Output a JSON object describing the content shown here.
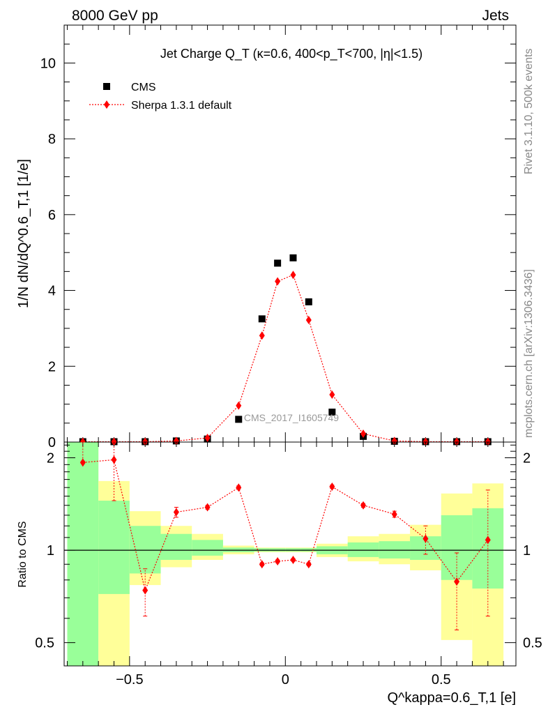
{
  "header": {
    "left": "8000 GeV pp",
    "right": "Jets"
  },
  "side_text": {
    "top": "Rivet 3.1.10,  500k events",
    "bottom": "mcplots.cern.ch [arXiv:1306.3436]"
  },
  "colors": {
    "data": "#000000",
    "mc": "#ff0000",
    "band_inner": "#99ff99",
    "band_outer": "#ffff99"
  },
  "chart_data": [
    {
      "type": "scatter",
      "title": "Jet Charge Q_T (κ=0.6, 400<p_T<700, |η|<1.5)",
      "ylabel": "1/N dN/dQ^0.6_T,1 [1/e]",
      "watermark": "CMS_2017_I1605749",
      "xlim": [
        -0.71,
        0.74
      ],
      "ylim": [
        0,
        11
      ],
      "yticks": [
        0,
        2,
        4,
        6,
        8,
        10
      ],
      "legend": [
        "CMS",
        "Sherpa 1.3.1 default"
      ],
      "legend_position": "top-left",
      "series": [
        {
          "name": "CMS",
          "marker": "square",
          "x": [
            -0.65,
            -0.55,
            -0.45,
            -0.35,
            -0.25,
            -0.15,
            -0.075,
            -0.025,
            0.025,
            0.075,
            0.15,
            0.25,
            0.35,
            0.45,
            0.55,
            0.65
          ],
          "y": [
            0.01,
            0.01,
            0.01,
            0.03,
            0.08,
            0.6,
            3.25,
            4.72,
            4.86,
            3.7,
            0.79,
            0.15,
            0.02,
            0.01,
            0.01,
            0.01
          ]
        },
        {
          "name": "Sherpa 1.3.1 default",
          "marker": "diamond",
          "x": [
            -0.65,
            -0.55,
            -0.45,
            -0.35,
            -0.25,
            -0.15,
            -0.075,
            -0.025,
            0.025,
            0.075,
            0.15,
            0.25,
            0.35,
            0.45,
            0.55,
            0.65
          ],
          "y": [
            0.01,
            0.01,
            0.01,
            0.03,
            0.11,
            0.96,
            2.81,
            4.24,
            4.41,
            3.22,
            1.25,
            0.22,
            0.03,
            0.01,
            0.01,
            0.01
          ]
        }
      ]
    },
    {
      "type": "scatter",
      "ylabel": "Ratio to CMS",
      "xlabel": "Q^kappa=0.6_T,1 [e]",
      "xlim": [
        -0.71,
        0.74
      ],
      "ylim": [
        0.42,
        2.25
      ],
      "log_y": true,
      "yticks": [
        0.5,
        1,
        2
      ],
      "xticks": [
        -0.5,
        0,
        0.5
      ],
      "reference_line": 1,
      "bins": [
        {
          "lo": -0.7,
          "hi": -0.6,
          "in": [
            0.3,
            2.5
          ],
          "out": [
            0.3,
            2.5
          ]
        },
        {
          "lo": -0.6,
          "hi": -0.5,
          "in": [
            0.72,
            1.45
          ],
          "out": [
            0.3,
            1.68
          ]
        },
        {
          "lo": -0.5,
          "hi": -0.4,
          "in": [
            0.84,
            1.2
          ],
          "out": [
            0.77,
            1.34
          ]
        },
        {
          "lo": -0.4,
          "hi": -0.3,
          "in": [
            0.93,
            1.13
          ],
          "out": [
            0.88,
            1.2
          ]
        },
        {
          "lo": -0.3,
          "hi": -0.2,
          "in": [
            0.96,
            1.08
          ],
          "out": [
            0.93,
            1.13
          ]
        },
        {
          "lo": -0.2,
          "hi": -0.1,
          "in": [
            0.985,
            1.02
          ],
          "out": [
            0.97,
            1.035
          ]
        },
        {
          "lo": -0.1,
          "hi": -0.05,
          "in": [
            0.99,
            1.015
          ],
          "out": [
            0.985,
            1.02
          ]
        },
        {
          "lo": -0.05,
          "hi": 0.0,
          "in": [
            0.99,
            1.015
          ],
          "out": [
            0.985,
            1.02
          ]
        },
        {
          "lo": 0.0,
          "hi": 0.05,
          "in": [
            0.99,
            1.015
          ],
          "out": [
            0.985,
            1.02
          ]
        },
        {
          "lo": 0.05,
          "hi": 0.1,
          "in": [
            0.99,
            1.015
          ],
          "out": [
            0.985,
            1.02
          ]
        },
        {
          "lo": 0.1,
          "hi": 0.2,
          "in": [
            0.97,
            1.03
          ],
          "out": [
            0.95,
            1.05
          ]
        },
        {
          "lo": 0.2,
          "hi": 0.3,
          "in": [
            0.95,
            1.06
          ],
          "out": [
            0.92,
            1.11
          ]
        },
        {
          "lo": 0.3,
          "hi": 0.4,
          "in": [
            0.94,
            1.07
          ],
          "out": [
            0.9,
            1.13
          ]
        },
        {
          "lo": 0.4,
          "hi": 0.5,
          "in": [
            0.93,
            1.11
          ],
          "out": [
            0.86,
            1.21
          ]
        },
        {
          "lo": 0.5,
          "hi": 0.6,
          "in": [
            0.8,
            1.3
          ],
          "out": [
            0.51,
            1.53
          ]
        },
        {
          "lo": 0.6,
          "hi": 0.7,
          "in": [
            0.75,
            1.37
          ],
          "out": [
            0.4,
            1.65
          ]
        }
      ],
      "series": [
        {
          "name": "Sherpa 1.3.1 default",
          "x": [
            -0.65,
            -0.55,
            -0.45,
            -0.35,
            -0.25,
            -0.15,
            -0.075,
            -0.025,
            0.025,
            0.075,
            0.15,
            0.25,
            0.35,
            0.45,
            0.55,
            0.65
          ],
          "y": [
            1.93,
            1.97,
            0.74,
            1.33,
            1.38,
            1.6,
            0.9,
            0.92,
            0.93,
            0.9,
            1.61,
            1.4,
            1.31,
            1.09,
            0.79,
            1.08
          ],
          "err_lo": [
            1.95,
            1.45,
            0.61,
            1.28,
            1.36,
            1.58,
            0.89,
            0.91,
            0.92,
            0.89,
            1.59,
            1.38,
            1.28,
            0.97,
            0.55,
            0.61
          ],
          "err_hi": [
            2.3,
            2.3,
            0.87,
            1.38,
            1.4,
            1.62,
            0.91,
            0.93,
            0.94,
            0.91,
            1.63,
            1.42,
            1.34,
            1.2,
            0.98,
            1.57
          ]
        }
      ]
    }
  ]
}
